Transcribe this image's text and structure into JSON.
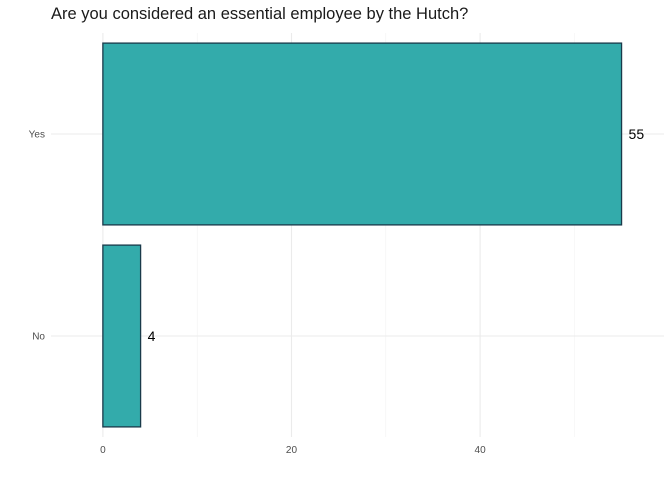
{
  "chart_data": {
    "type": "bar",
    "orientation": "horizontal",
    "title": "Are you considered an essential employee by the Hutch?",
    "categories": [
      "Yes",
      "No"
    ],
    "values": [
      55,
      4
    ],
    "data_labels": [
      "55",
      "4"
    ],
    "xlabel": "",
    "ylabel": "",
    "x_ticks": [
      0,
      20,
      40
    ],
    "x_tick_labels": [
      "0",
      "20",
      "40"
    ],
    "xlim": [
      -5.5,
      59.5
    ],
    "grid": true,
    "legend": "none",
    "colors": {
      "bar_fill": "#33abab",
      "bar_stroke": "#1a3a4a"
    }
  }
}
